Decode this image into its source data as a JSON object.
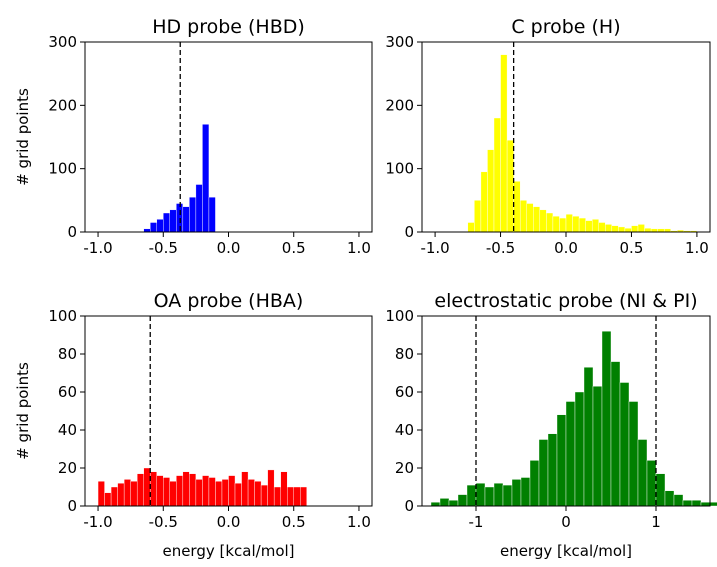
{
  "chart_data": [
    {
      "type": "bar",
      "title": "HD probe (HBD)",
      "xlabel": "",
      "ylabel": "# grid points",
      "xlim": [
        -1.1,
        1.1
      ],
      "ylim": [
        0,
        300
      ],
      "xticks": [
        "-1.0",
        "-0.5",
        "0.0",
        "0.5",
        "1.0"
      ],
      "xtick_values": [
        -1.0,
        -0.5,
        0.0,
        0.5,
        1.0
      ],
      "yticks": [
        "0",
        "100",
        "200",
        "300"
      ],
      "ytick_values": [
        0,
        100,
        200,
        300
      ],
      "color": "#0000ff",
      "bin_start": -0.65,
      "bin_width": 0.05,
      "values": [
        5,
        15,
        20,
        30,
        35,
        45,
        40,
        55,
        75,
        170,
        55
      ],
      "vlines": [
        -0.37
      ]
    },
    {
      "type": "bar",
      "title": "C probe (H)",
      "xlabel": "",
      "ylabel": "",
      "xlim": [
        -1.1,
        1.1
      ],
      "ylim": [
        0,
        300
      ],
      "xticks": [
        "-1.0",
        "-0.5",
        "0.0",
        "0.5",
        "1.0"
      ],
      "xtick_values": [
        -1.0,
        -0.5,
        0.0,
        0.5,
        1.0
      ],
      "yticks": [
        "0",
        "100",
        "200",
        "300"
      ],
      "ytick_values": [
        0,
        100,
        200,
        300
      ],
      "color": "#ffff00",
      "bin_start": -0.75,
      "bin_width": 0.05,
      "values": [
        15,
        50,
        95,
        130,
        180,
        280,
        145,
        80,
        50,
        45,
        40,
        35,
        30,
        25,
        22,
        28,
        25,
        22,
        18,
        20,
        15,
        12,
        10,
        8,
        6,
        10,
        12,
        6,
        5,
        5,
        5,
        2,
        3,
        2,
        2
      ],
      "vlines": [
        -0.4
      ]
    },
    {
      "type": "bar",
      "title": "OA probe (HBA)",
      "xlabel": "energy [kcal/mol]",
      "ylabel": "# grid points",
      "xlim": [
        -1.1,
        1.1
      ],
      "ylim": [
        0,
        100
      ],
      "xticks": [
        "-1.0",
        "-0.5",
        "0.0",
        "0.5",
        "1.0"
      ],
      "xtick_values": [
        -1.0,
        -0.5,
        0.0,
        0.5,
        1.0
      ],
      "yticks": [
        "0",
        "20",
        "40",
        "60",
        "80",
        "100"
      ],
      "ytick_values": [
        0,
        20,
        40,
        60,
        80,
        100
      ],
      "color": "#ff0000",
      "bin_start": -1.0,
      "bin_width": 0.05,
      "values": [
        13,
        7,
        10,
        12,
        14,
        13,
        17,
        20,
        18,
        16,
        15,
        13,
        16,
        18,
        17,
        14,
        16,
        15,
        13,
        14,
        16,
        12,
        18,
        14,
        13,
        11,
        19,
        10,
        18,
        10,
        10,
        10
      ],
      "vlines": [
        -0.6
      ]
    },
    {
      "type": "bar",
      "title": "electrostatic probe (NI & PI)",
      "xlabel": "energy [kcal/mol]",
      "ylabel": "",
      "xlim": [
        -1.6,
        1.6
      ],
      "ylim": [
        0,
        100
      ],
      "xticks": [
        "-1",
        "0",
        "1"
      ],
      "xtick_values": [
        -1,
        0,
        1
      ],
      "yticks": [
        "0",
        "20",
        "40",
        "60",
        "80",
        "100"
      ],
      "ytick_values": [
        0,
        20,
        40,
        60,
        80,
        100
      ],
      "color": "#008000",
      "bin_start": -1.5,
      "bin_width": 0.1,
      "values": [
        2,
        4,
        3,
        6,
        11,
        12,
        10,
        12,
        11,
        14,
        15,
        24,
        35,
        38,
        48,
        55,
        60,
        73,
        63,
        92,
        76,
        65,
        55,
        35,
        24,
        17,
        8,
        6,
        3,
        3,
        2,
        2
      ],
      "vlines": [
        -1.0,
        1.0
      ]
    }
  ]
}
